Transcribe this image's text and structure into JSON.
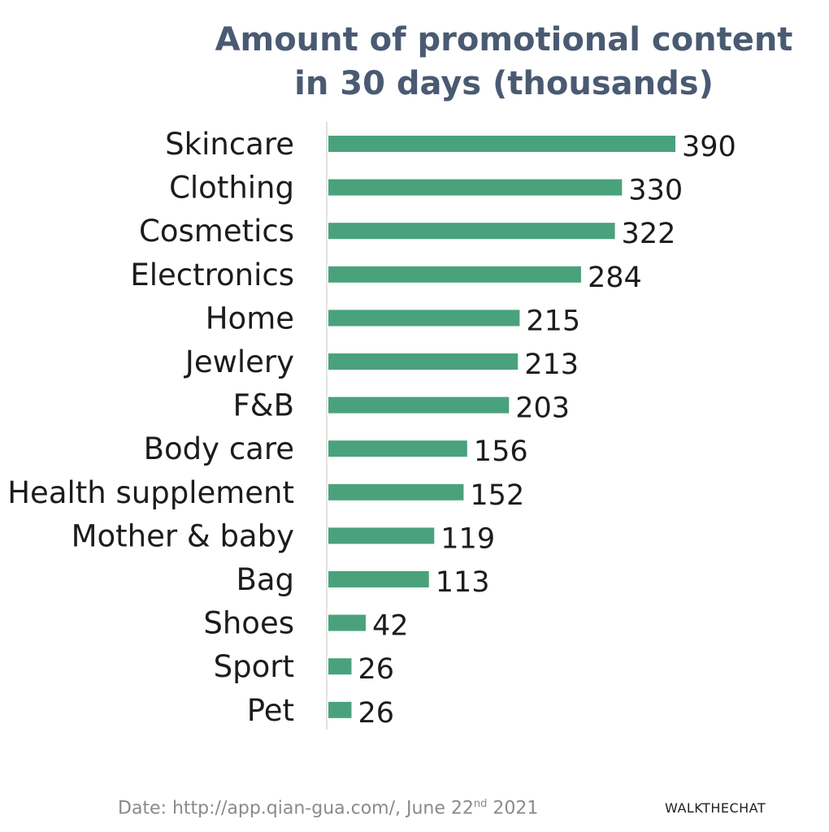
{
  "chart_data": {
    "type": "bar",
    "orientation": "horizontal",
    "title_line1": "Amount of promotional content",
    "title_line2": "in 30 days (thousands)",
    "categories": [
      "Skincare",
      "Clothing",
      "Cosmetics",
      "Electronics",
      "Home",
      "Jewlery",
      "F&B",
      "Body care",
      "Health supplement",
      "Mother & baby",
      "Bag",
      "Shoes",
      "Sport",
      "Pet"
    ],
    "values": [
      390,
      330,
      322,
      284,
      215,
      213,
      203,
      156,
      152,
      119,
      113,
      42,
      26,
      26
    ],
    "xlim": [
      0,
      400
    ],
    "grid": false,
    "bar_color": "#4aa27d"
  },
  "source": {
    "prefix": "Date: http://app.qian-gua.com/, June 22",
    "sup": "nd",
    "suffix": " 2021"
  },
  "brand": "WALKTHECHAT"
}
